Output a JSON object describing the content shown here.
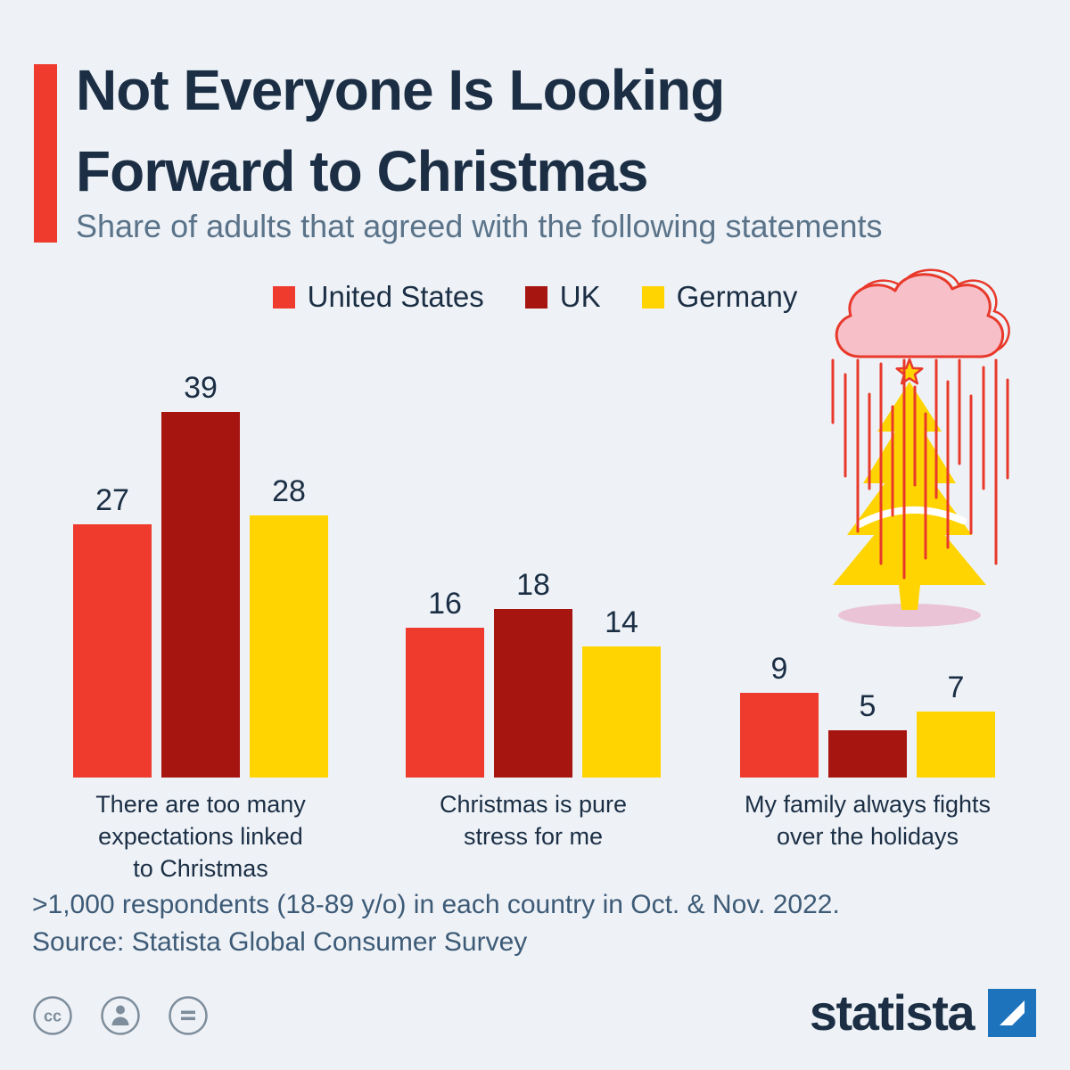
{
  "header": {
    "title_line1": "Not Everyone Is Looking",
    "title_line2": "Forward to Christmas",
    "subtitle": "Share of adults that agreed with the following statements"
  },
  "legend": [
    {
      "label": "United States",
      "color": "#ee3b2d"
    },
    {
      "label": "UK",
      "color": "#a61510"
    },
    {
      "label": "Germany",
      "color": "#ffd400"
    }
  ],
  "chart_data": {
    "type": "bar",
    "categories": [
      "There are too many expectations linked to Christmas",
      "Christmas is pure stress for me",
      "My family always fights over the holidays"
    ],
    "category_label_lines": [
      [
        "There are too many",
        "expectations linked",
        "to Christmas"
      ],
      [
        "Christmas is pure",
        "stress for me"
      ],
      [
        "My family always fights",
        "over the holidays"
      ]
    ],
    "series": [
      {
        "name": "United States",
        "color": "#ee3b2d",
        "values": [
          27,
          16,
          9
        ]
      },
      {
        "name": "UK",
        "color": "#a61510",
        "values": [
          39,
          18,
          5
        ]
      },
      {
        "name": "Germany",
        "color": "#ffd400",
        "values": [
          28,
          14,
          7
        ]
      }
    ],
    "value_labels_shown": true,
    "axes_shown": false,
    "gridlines": false,
    "ylim": [
      0,
      39
    ],
    "legend_position": "top"
  },
  "footer": {
    "note": ">1,000 respondents (18-89 y/o) in each country in Oct. & Nov. 2022.",
    "source": "Source: Statista Global Consumer Survey"
  },
  "branding": {
    "logo_text": "statista",
    "logo_square_color": "#1d74bc"
  },
  "license_icons": [
    "cc-icon",
    "attribution-icon",
    "equal-icon"
  ],
  "illustration": {
    "name": "rain-cloud-over-christmas-tree",
    "elements": [
      "rain-cloud-icon",
      "rain-lines",
      "star-icon",
      "christmas-tree-icon",
      "tree-shadow"
    ]
  },
  "colors": {
    "background": "#eef2f7",
    "title": "#1b2e44",
    "subtitle": "#5a7389",
    "accent": "#ee3b2d",
    "footer_text": "#3d5a76",
    "rain": "#e8392b",
    "cloud_fill": "#f7bfc8",
    "tree_yellow": "#ffd400",
    "shadow_pink": "#eac3d6",
    "license_gray": "#7e8d9b"
  }
}
